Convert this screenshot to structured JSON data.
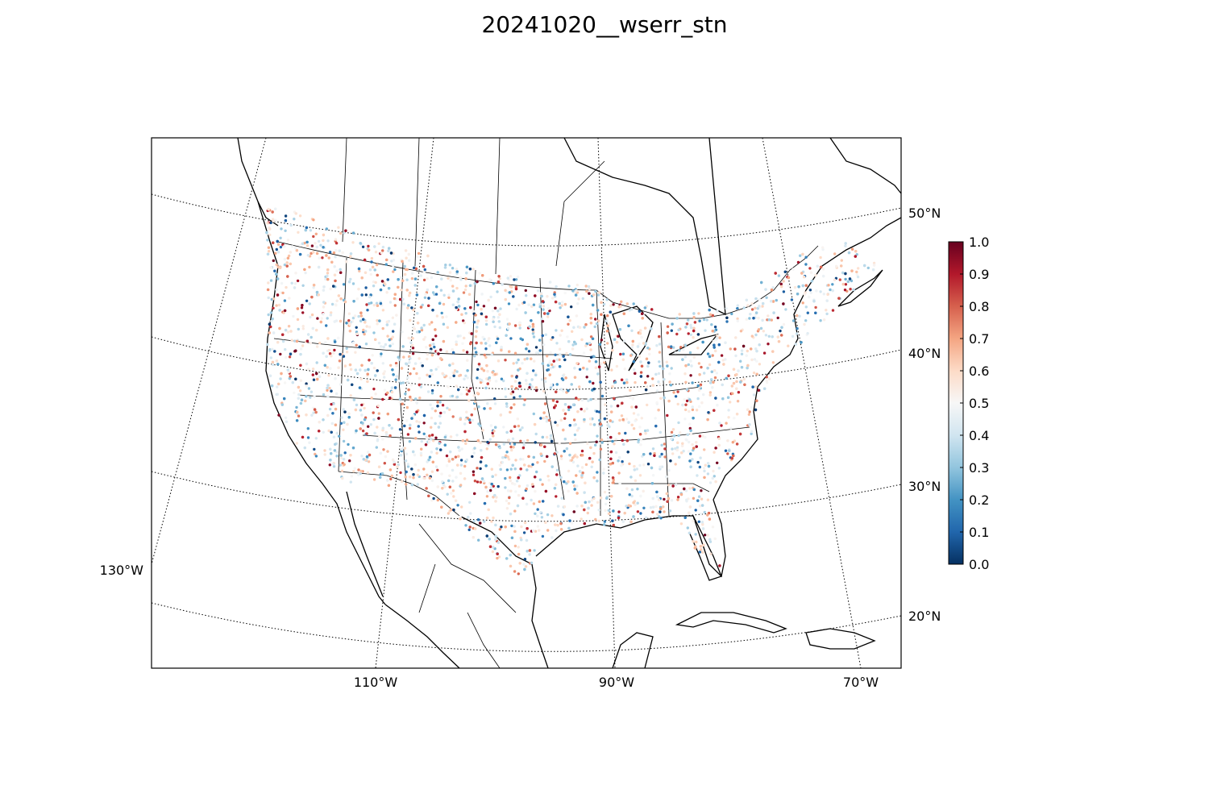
{
  "title": "20241020__wserr_stn",
  "map": {
    "lat_labels": [
      "50°N",
      "40°N",
      "30°N",
      "20°N"
    ],
    "lon_labels_bottom": [
      "110°W",
      "90°W",
      "70°W"
    ],
    "lon_label_left": "130°W"
  },
  "colorbar": {
    "ticks": [
      "0.0",
      "0.1",
      "0.2",
      "0.3",
      "0.4",
      "0.5",
      "0.6",
      "0.7",
      "0.8",
      "0.9",
      "1.0"
    ],
    "min": 0.0,
    "max": 1.0,
    "colors": [
      "#053061",
      "#2166ac",
      "#4393c3",
      "#92c5de",
      "#d1e5f0",
      "#f7f7f7",
      "#fddbc7",
      "#f4a582",
      "#d6604d",
      "#b2182b",
      "#67001f"
    ]
  }
}
